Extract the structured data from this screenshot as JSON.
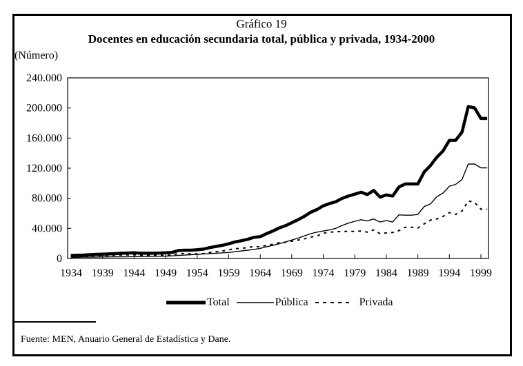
{
  "chart_data": {
    "type": "line",
    "kicker": "Gráfico 19",
    "title": "Docentes en educación secundaria total, pública y privada, 1934-2000",
    "ylabel": "(Número)",
    "xlabel": "",
    "ylim": [
      0,
      240000
    ],
    "xlim": [
      1934,
      2000
    ],
    "yticks": [
      0,
      40000,
      80000,
      120000,
      160000,
      200000,
      240000
    ],
    "ytick_labels": [
      "0",
      "40.000",
      "80.000",
      "120.000",
      "160.000",
      "200.000",
      "240.000"
    ],
    "xtick_labels": [
      "1934",
      "1939",
      "1944",
      "1949",
      "1954",
      "1959",
      "1964",
      "1969",
      "1974",
      "1979",
      "1984",
      "1989",
      "1994",
      "1999"
    ],
    "grid": false,
    "legend_position": "bottom",
    "x": [
      1934,
      1935,
      1936,
      1937,
      1938,
      1939,
      1940,
      1941,
      1942,
      1943,
      1944,
      1945,
      1946,
      1947,
      1948,
      1949,
      1950,
      1951,
      1952,
      1953,
      1954,
      1955,
      1956,
      1957,
      1958,
      1959,
      1960,
      1961,
      1962,
      1963,
      1964,
      1965,
      1966,
      1967,
      1968,
      1969,
      1970,
      1971,
      1972,
      1973,
      1974,
      1975,
      1976,
      1977,
      1978,
      1979,
      1980,
      1981,
      1982,
      1983,
      1984,
      1985,
      1986,
      1987,
      1988,
      1989,
      1990,
      1991,
      1992,
      1993,
      1994,
      1995,
      1996,
      1997,
      1998,
      1999,
      2000
    ],
    "series": [
      {
        "name": "Total",
        "style": "thick",
        "values": [
          4000,
          4200,
          4500,
          5000,
          5500,
          5800,
          6000,
          6500,
          7000,
          7200,
          7500,
          7000,
          7000,
          7000,
          7200,
          7500,
          8000,
          10500,
          11000,
          11000,
          11500,
          12500,
          14500,
          16000,
          17500,
          19500,
          22000,
          23500,
          25500,
          28000,
          29000,
          33000,
          36500,
          40500,
          43500,
          47500,
          51500,
          56000,
          61500,
          65000,
          70000,
          73000,
          75500,
          80000,
          83000,
          85500,
          88000,
          85000,
          90500,
          81500,
          84500,
          83000,
          95000,
          99000,
          99000,
          99000,
          115000,
          123500,
          134500,
          143000,
          157000,
          157000,
          168000,
          202000,
          200000,
          186000,
          186000
        ]
      },
      {
        "name": "Pública",
        "style": "thin",
        "values": [
          1500,
          1600,
          1700,
          1800,
          1900,
          2000,
          2100,
          2200,
          2300,
          2400,
          2500,
          2600,
          2700,
          2800,
          2900,
          3000,
          3500,
          4000,
          4500,
          5000,
          5500,
          6000,
          6500,
          7000,
          7500,
          8000,
          9000,
          10000,
          11000,
          12000,
          13500,
          15500,
          17500,
          19500,
          22000,
          24500,
          27000,
          30000,
          33000,
          35000,
          36500,
          38000,
          40000,
          44000,
          47000,
          49500,
          51500,
          50000,
          52500,
          48500,
          50500,
          48500,
          58000,
          57500,
          57500,
          58500,
          69000,
          72500,
          82000,
          87000,
          96000,
          98500,
          105000,
          125500,
          125500,
          120500,
          120500
        ]
      },
      {
        "name": "Privada",
        "style": "dashed",
        "values": [
          2500,
          2600,
          2800,
          3200,
          3600,
          3800,
          3900,
          4300,
          4700,
          4800,
          5000,
          4400,
          4300,
          4200,
          4300,
          4500,
          4500,
          6500,
          6500,
          6000,
          6000,
          6500,
          8000,
          9000,
          10000,
          11500,
          13000,
          13500,
          14500,
          16000,
          15500,
          17500,
          19000,
          21000,
          21500,
          23000,
          24500,
          26000,
          28500,
          30000,
          33500,
          35000,
          35500,
          36000,
          36000,
          36000,
          36500,
          35000,
          38000,
          33000,
          34000,
          34500,
          37000,
          41500,
          41500,
          40500,
          46000,
          51000,
          52500,
          56000,
          61000,
          58500,
          63000,
          76500,
          74500,
          65500,
          65500
        ]
      }
    ]
  },
  "source": "Fuente: MEN, Anuario General de Estadística y Dane."
}
